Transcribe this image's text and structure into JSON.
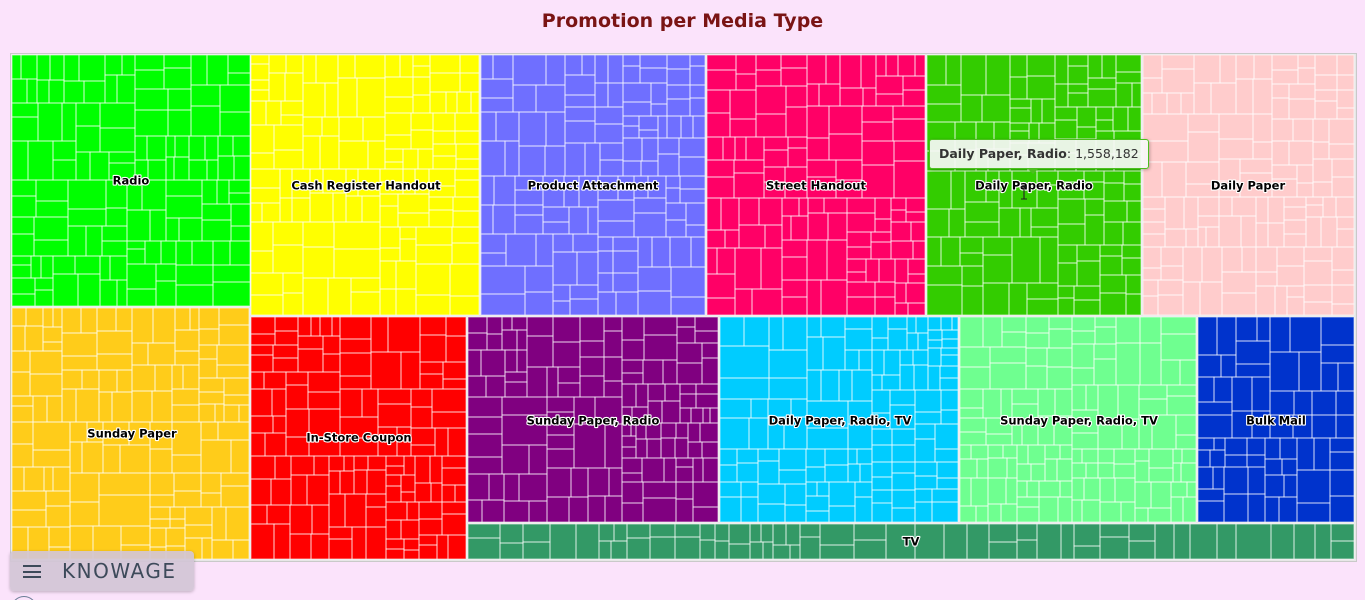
{
  "chart_data": {
    "type": "treemap",
    "title": "Promotion per Media Type",
    "categories": [
      {
        "name": "Radio",
        "color": "#00ff00"
      },
      {
        "name": "Cash Register Handout",
        "color": "#ffff00"
      },
      {
        "name": "Product Attachment",
        "color": "#6f6fff"
      },
      {
        "name": "Street Handout",
        "color": "#ff0066"
      },
      {
        "name": "Daily Paper, Radio",
        "color": "#33cc00",
        "value": 1558182
      },
      {
        "name": "Daily Paper",
        "color": "#ffcccc"
      },
      {
        "name": "Sunday Paper",
        "color": "#ffcc1a"
      },
      {
        "name": "In-Store Coupon",
        "color": "#ff0000"
      },
      {
        "name": "Sunday Paper, Radio",
        "color": "#800080"
      },
      {
        "name": "Daily Paper, Radio, TV",
        "color": "#00ccff"
      },
      {
        "name": "Sunday Paper, Radio, TV",
        "color": "#6fff90"
      },
      {
        "name": "Bulk Mail",
        "color": "#0033cc"
      },
      {
        "name": "TV",
        "color": "#339966"
      }
    ],
    "tooltip": {
      "name": "Daily Paper, Radio",
      "value_text": "1,558,182"
    }
  },
  "toolbar": {
    "brand": "KNOWAGE",
    "menu_icon": "hamburger-menu-icon"
  }
}
